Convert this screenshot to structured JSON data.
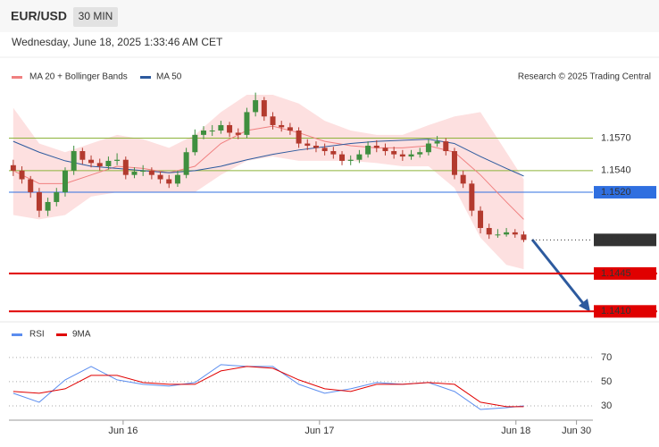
{
  "header": {
    "symbol": "EUR/USD",
    "interval": "30 MIN",
    "timestamp": "Wednesday, June 18, 2025 1:33:46 AM CET",
    "credit": "Research © 2025 Trading Central"
  },
  "chart_data": [
    {
      "type": "candlestick",
      "up_color": "#3f8f3f",
      "down_color": "#b33a2e",
      "xlim": [
        -0.5,
        67
      ],
      "ylim": [
        1.1402,
        1.1648
      ],
      "candles": [
        [
          1.1545,
          1.155,
          1.1535,
          1.154
        ],
        [
          1.154,
          1.1544,
          1.1528,
          1.1532
        ],
        [
          1.1532,
          1.1535,
          1.1515,
          1.152
        ],
        [
          1.152,
          1.1524,
          1.1497,
          1.1503
        ],
        [
          1.1503,
          1.1515,
          1.1498,
          1.1511
        ],
        [
          1.1511,
          1.1524,
          1.1507,
          1.152
        ],
        [
          1.152,
          1.1543,
          1.1516,
          1.154
        ],
        [
          1.154,
          1.1563,
          1.1536,
          1.1558
        ],
        [
          1.1558,
          1.1561,
          1.1546,
          1.155
        ],
        [
          1.155,
          1.1554,
          1.1543,
          1.1547
        ],
        [
          1.1547,
          1.1551,
          1.154,
          1.1544
        ],
        [
          1.1544,
          1.1553,
          1.1541,
          1.1549
        ],
        [
          1.1549,
          1.1556,
          1.1545,
          1.155
        ],
        [
          1.155,
          1.1553,
          1.1532,
          1.1536
        ],
        [
          1.1536,
          1.1543,
          1.1533,
          1.1539
        ],
        [
          1.1539,
          1.1545,
          1.1535,
          1.154
        ],
        [
          1.154,
          1.1543,
          1.1532,
          1.1536
        ],
        [
          1.1536,
          1.1539,
          1.1528,
          1.1532
        ],
        [
          1.1532,
          1.1536,
          1.1524,
          1.1528
        ],
        [
          1.1528,
          1.154,
          1.1525,
          1.1536
        ],
        [
          1.1536,
          1.1561,
          1.1533,
          1.1557
        ],
        [
          1.1557,
          1.1578,
          1.1554,
          1.1573
        ],
        [
          1.1573,
          1.1581,
          1.1569,
          1.1577
        ],
        [
          1.1577,
          1.1582,
          1.1572,
          1.1577
        ],
        [
          1.1577,
          1.1586,
          1.1574,
          1.1582
        ],
        [
          1.1582,
          1.1585,
          1.1571,
          1.1575
        ],
        [
          1.1575,
          1.1579,
          1.1569,
          1.1573
        ],
        [
          1.1573,
          1.1598,
          1.157,
          1.1594
        ],
        [
          1.1594,
          1.1612,
          1.159,
          1.1605
        ],
        [
          1.1605,
          1.1608,
          1.1586,
          1.159
        ],
        [
          1.159,
          1.1594,
          1.1578,
          1.1582
        ],
        [
          1.1582,
          1.1586,
          1.1576,
          1.158
        ],
        [
          1.158,
          1.1584,
          1.1573,
          1.1577
        ],
        [
          1.1577,
          1.158,
          1.1561,
          1.1565
        ],
        [
          1.1565,
          1.1569,
          1.1559,
          1.1563
        ],
        [
          1.1563,
          1.1567,
          1.1557,
          1.1561
        ],
        [
          1.1561,
          1.1565,
          1.1554,
          1.1558
        ],
        [
          1.1558,
          1.1562,
          1.1551,
          1.1555
        ],
        [
          1.1555,
          1.1558,
          1.1545,
          1.1549
        ],
        [
          1.1549,
          1.1554,
          1.1545,
          1.155
        ],
        [
          1.155,
          1.1559,
          1.1547,
          1.1555
        ],
        [
          1.1555,
          1.1567,
          1.1552,
          1.1563
        ],
        [
          1.1563,
          1.1568,
          1.1557,
          1.1561
        ],
        [
          1.1561,
          1.1565,
          1.1554,
          1.1558
        ],
        [
          1.1558,
          1.1562,
          1.1551,
          1.1555
        ],
        [
          1.1555,
          1.1559,
          1.1549,
          1.1553
        ],
        [
          1.1553,
          1.1559,
          1.155,
          1.1555
        ],
        [
          1.1555,
          1.1561,
          1.1552,
          1.1557
        ],
        [
          1.1557,
          1.1569,
          1.1554,
          1.1565
        ],
        [
          1.1565,
          1.1572,
          1.1562,
          1.1567
        ],
        [
          1.1567,
          1.157,
          1.1554,
          1.1558
        ],
        [
          1.1558,
          1.1561,
          1.1532,
          1.1536
        ],
        [
          1.1536,
          1.154,
          1.1524,
          1.1528
        ],
        [
          1.1528,
          1.1531,
          1.1498,
          1.1503
        ],
        [
          1.1503,
          1.1507,
          1.1482,
          1.1487
        ],
        [
          1.1487,
          1.1491,
          1.1477,
          1.1481
        ],
        [
          1.1481,
          1.1486,
          1.1478,
          1.1481
        ],
        [
          1.1481,
          1.1487,
          1.1479,
          1.1483
        ],
        [
          1.1483,
          1.1486,
          1.1478,
          1.1481
        ],
        [
          1.1481,
          1.1484,
          1.1474,
          1.1476
        ]
      ],
      "x": [
        0,
        3,
        6,
        9,
        12,
        15,
        18,
        21,
        24,
        27,
        30,
        33,
        36,
        39,
        42,
        45,
        48,
        51,
        54,
        57,
        59
      ],
      "series": [
        {
          "name": "MA 20 + Bollinger Bands",
          "color": "#f08080",
          "band_color": "#fde0e0",
          "values": [
            1.154,
            1.1528,
            1.1528,
            1.1536,
            1.1544,
            1.1542,
            1.1538,
            1.1544,
            1.1565,
            1.1577,
            1.1581,
            1.1575,
            1.1567,
            1.1563,
            1.1561,
            1.1561,
            1.1563,
            1.1557,
            1.1536,
            1.1511,
            1.1495
          ],
          "upper": [
            1.1598,
            1.1565,
            1.1557,
            1.1565,
            1.1573,
            1.1569,
            1.1561,
            1.1573,
            1.1594,
            1.161,
            1.161,
            1.1602,
            1.1586,
            1.1577,
            1.1573,
            1.1573,
            1.1582,
            1.159,
            1.1594,
            1.1557,
            1.1532
          ],
          "lower": [
            1.1499,
            1.1495,
            1.1499,
            1.1516,
            1.152,
            1.152,
            1.152,
            1.152,
            1.1536,
            1.1549,
            1.1553,
            1.1549,
            1.1549,
            1.1549,
            1.1547,
            1.1544,
            1.1544,
            1.1524,
            1.1478,
            1.1453,
            1.1449
          ]
        },
        {
          "name": "MA 50",
          "color": "#2d5a9e",
          "values": [
            1.1567,
            1.1557,
            1.1549,
            1.1544,
            1.1542,
            1.154,
            1.1538,
            1.154,
            1.1544,
            1.155,
            1.1555,
            1.1559,
            1.1562,
            1.1565,
            1.1567,
            1.1568,
            1.1569,
            1.1565,
            1.1553,
            1.1542,
            1.1535
          ]
        }
      ],
      "levels": [
        {
          "value": 1.157,
          "label": "1.1570",
          "color": "#8db33a",
          "tag": false,
          "dotted": false
        },
        {
          "value": 1.154,
          "label": "1.1540",
          "color": "#8db33a",
          "tag": false,
          "dotted": false
        },
        {
          "value": 1.152,
          "label": "1.1520",
          "color": "#2f6fe0",
          "tag": true,
          "dotted": false
        },
        {
          "value": 1.1476,
          "label": "1.1476",
          "color": "#333333",
          "tag": true,
          "dotted": true
        },
        {
          "value": 1.1445,
          "label": "1.1445",
          "color": "#e00000",
          "tag": true,
          "dotted": false
        },
        {
          "value": 1.141,
          "label": "1.1410",
          "color": "#e00000",
          "tag": true,
          "dotted": false
        }
      ]
    },
    {
      "type": "line",
      "xlim": [
        -0.5,
        67
      ],
      "ylim": [
        20,
        81
      ],
      "yticks": [
        70,
        50,
        30
      ],
      "grid": true,
      "xticks": [
        {
          "value": 12.7,
          "label": "Jun 16"
        },
        {
          "value": 35.4,
          "label": "Jun 17"
        },
        {
          "value": 58.1,
          "label": "Jun 18"
        },
        {
          "value": 65.1,
          "label": "Jun 30"
        }
      ],
      "x": [
        0,
        3,
        6,
        9,
        12,
        15,
        18,
        21,
        24,
        27,
        30,
        33,
        36,
        39,
        42,
        45,
        48,
        51,
        54,
        57,
        59
      ],
      "series": [
        {
          "name": "RSI",
          "color": "#5b8def",
          "values": [
            40.4,
            33,
            51.5,
            62.6,
            51.5,
            47.8,
            46.3,
            49.3,
            64.1,
            62.6,
            62.6,
            47.8,
            40.4,
            44.1,
            49.3,
            47.8,
            49.3,
            41.9,
            27,
            28.5,
            30
          ]
        },
        {
          "name": "9MA",
          "color": "#e00000",
          "values": [
            41.9,
            40.4,
            44.1,
            55.2,
            55.2,
            49.3,
            47.8,
            47.8,
            58.9,
            62.6,
            61.1,
            51.5,
            44.1,
            41.9,
            47.8,
            47.8,
            49.3,
            47.8,
            33,
            29.3,
            29.3
          ]
        }
      ]
    }
  ]
}
